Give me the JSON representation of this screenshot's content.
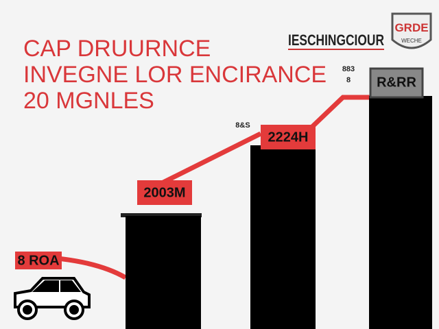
{
  "header": {
    "title_lines": [
      "CAP DRUURNCE",
      "INVEGNE LOR ENCIRANCE",
      "20 MGNLES"
    ],
    "brand": "IESCHINGCIOUR",
    "badge": {
      "main": "GRDE",
      "sub": "WECHE"
    }
  },
  "labels": [
    "8 ROA",
    "2003M",
    "2224H",
    "R&RR"
  ],
  "notes": [
    "8&S",
    "883",
    "8"
  ]
}
